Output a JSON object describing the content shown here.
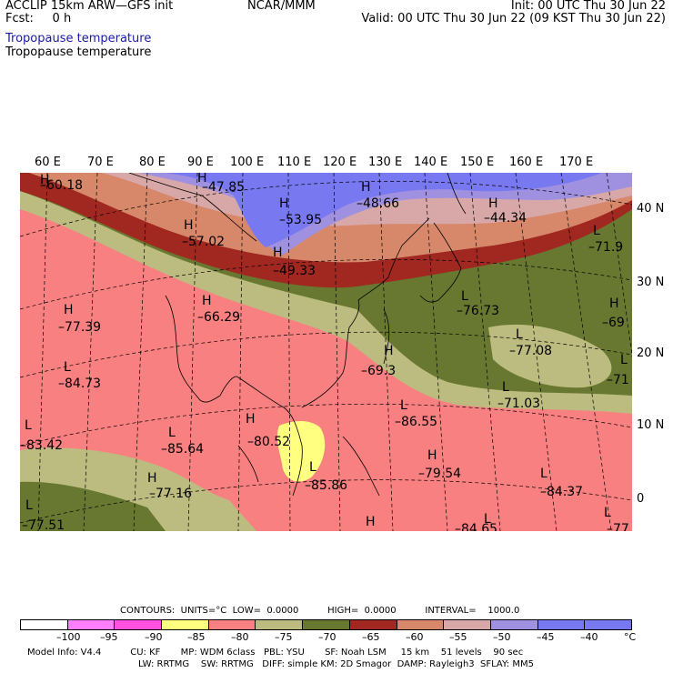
{
  "header": {
    "title": "ACCLIP 15km ARW—GFS init",
    "fcst": "Fcst:     0 h",
    "center": "NCAR/MMM",
    "init": "Init: 00 UTC Thu 30 Jun 22",
    "valid": "Valid: 00 UTC Thu 30 Jun 22 (09 KST Thu 30 Jun 22)",
    "field_line1": "Tropopause temperature",
    "field_line2": "Tropopause temperature"
  },
  "map": {
    "lon_labels": [
      "60 E",
      "70 E",
      "80 E",
      "90 E",
      "100 E",
      "110 E",
      "120 E",
      "130 E",
      "140 E",
      "150 E",
      "160 E",
      "170 E"
    ],
    "lat_labels": [
      "40 N",
      "30 N",
      "20 N",
      "10 N",
      "0"
    ],
    "colors": {
      "c_m90": "#ffff80",
      "c_m85": "#f88080",
      "c_m80": "#f87a78",
      "c_m75": "#bcbc80",
      "c_m70": "#687830",
      "c_m65": "#a02820",
      "c_m60": "#d8886a",
      "c_m55": "#d8a8a8",
      "c_m50": "#a090e0",
      "c_m45": "#7878f0",
      "coast": "#000000"
    },
    "annotations": [
      {
        "id": "a1",
        "kind": "H",
        "value": "–60.18"
      },
      {
        "id": "a2",
        "kind": "H",
        "value": "–47.85"
      },
      {
        "id": "a3",
        "kind": "H",
        "value": "–53.95"
      },
      {
        "id": "a4",
        "kind": "H",
        "value": "–48.66"
      },
      {
        "id": "a5",
        "kind": "H",
        "value": "–44.34"
      },
      {
        "id": "a6",
        "kind": "H",
        "value": "–57.02"
      },
      {
        "id": "a7",
        "kind": "H",
        "value": "–49.33"
      },
      {
        "id": "a8",
        "kind": "L",
        "value": "–71.9"
      },
      {
        "id": "a9",
        "kind": "H",
        "value": "–66.29"
      },
      {
        "id": "a10",
        "kind": "H",
        "value": "–77.39"
      },
      {
        "id": "a11",
        "kind": "L",
        "value": "–76.73"
      },
      {
        "id": "a12",
        "kind": "H",
        "value": "–69"
      },
      {
        "id": "a13",
        "kind": "L",
        "value": "–77.08"
      },
      {
        "id": "a14",
        "kind": "L",
        "value": "–84.73"
      },
      {
        "id": "a15",
        "kind": "H",
        "value": "–69.3"
      },
      {
        "id": "a16",
        "kind": "L",
        "value": "–71"
      },
      {
        "id": "a17",
        "kind": "L",
        "value": "–71.03"
      },
      {
        "id": "a18",
        "kind": "L",
        "value": "–86.55"
      },
      {
        "id": "a19",
        "kind": "L",
        "value": "–83.42"
      },
      {
        "id": "a20",
        "kind": "H",
        "value": "–80.52"
      },
      {
        "id": "a21",
        "kind": "L",
        "value": "–85.64"
      },
      {
        "id": "a22",
        "kind": "H",
        "value": "–79.54"
      },
      {
        "id": "a23",
        "kind": "L",
        "value": "–85.86"
      },
      {
        "id": "a24",
        "kind": "L",
        "value": "–84.37"
      },
      {
        "id": "a25",
        "kind": "H",
        "value": "–77.16"
      },
      {
        "id": "a26",
        "kind": "L",
        "value": "–77.51"
      },
      {
        "id": "a27",
        "kind": "H",
        "value": ""
      },
      {
        "id": "a28",
        "kind": "L",
        "value": "–84.65"
      },
      {
        "id": "a29",
        "kind": "L",
        "value": "–77"
      }
    ]
  },
  "contours": {
    "label": "CONTOURS:",
    "units": "UNITS=°C",
    "low": "LOW=  0.0000",
    "high": "HIGH=  0.0000",
    "interval": "INTERVAL=    1000.0"
  },
  "legend": {
    "colors": [
      "#ffffff",
      "#ff80ff",
      "#ff50e0",
      "#ffff80",
      "#f88080",
      "#bcbc80",
      "#687830",
      "#a02820",
      "#d8886a",
      "#d8a8a8",
      "#a090e0",
      "#7878f0",
      "#7878f0"
    ],
    "ticks": [
      "–100",
      "–95",
      "–90",
      "–85",
      "–80",
      "–75",
      "–70",
      "–65",
      "–60",
      "–55",
      "–50",
      "–45",
      "–40"
    ],
    "unit": "°C"
  },
  "model_info": {
    "line1a": "Model Info: V4.4",
    "line1b": "CU: KF",
    "line1c": "MP: WDM 6class",
    "line1d": "PBL: YSU",
    "line1e": "SF: Noah LSM",
    "line1f": "15 km",
    "line1g": "51 levels",
    "line1h": "90 sec",
    "line2a": "LW: RRTMG",
    "line2b": "SW: RRTMG",
    "line2c": "DIFF: simple",
    "line2d": "KM: 2D Smagor",
    "line2e": "DAMP: Rayleigh3",
    "line2f": "SFLAY: MM5"
  }
}
